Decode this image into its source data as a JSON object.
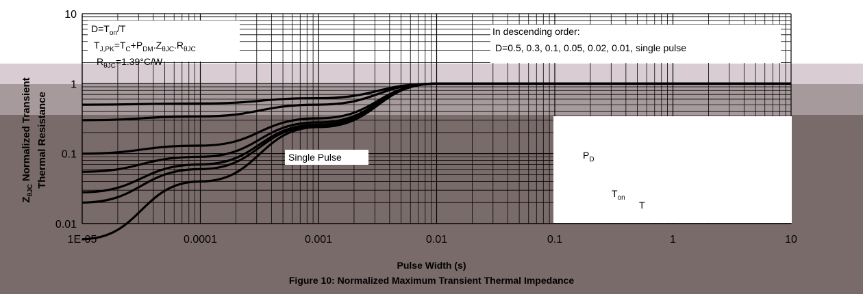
{
  "chart_data": {
    "type": "line",
    "title": "Figure 10: Normalized Maximum Transient Thermal Impedance",
    "xlabel": "Pulse Width (s)",
    "ylabel_line1": "Z",
    "ylabel_sub": "θJC",
    "ylabel_line1_rest": " Normalized Transient",
    "ylabel_line2": "Thermal Resistance",
    "x_scale": "log",
    "y_scale": "log",
    "xlim": [
      1e-05,
      10
    ],
    "ylim": [
      0.01,
      10
    ],
    "x_ticks": [
      "1E-05",
      "0.0001",
      "0.001",
      "0.01",
      "0.1",
      "1",
      "10"
    ],
    "y_ticks": [
      "10",
      "1",
      "0.1",
      "0.01"
    ],
    "grid": true,
    "annotations": {
      "d_def": "D=T",
      "d_def_sub": "on",
      "d_def_rest": "/T",
      "tjpk_a": "T",
      "tjpk_a_sub": "J,PK",
      "tjpk_b": "=T",
      "tjpk_b_sub": "C",
      "tjpk_c": "+P",
      "tjpk_c_sub": "DM",
      "tjpk_d": ".Z",
      "tjpk_d_sub": "θJC",
      "tjpk_e": ".R",
      "tjpk_e_sub": "θJC",
      "rthjc_a": "R",
      "rthjc_a_sub": "θJC",
      "rthjc_b": "=1.39°C/W",
      "order_title": "In descending order:",
      "order_values": "D=0.5, 0.3, 0.1, 0.05, 0.02, 0.01, single pulse",
      "single_pulse": "Single Pulse",
      "pd": "P",
      "pd_sub": "D",
      "ton": "T",
      "ton_sub": "on",
      "t": "T"
    },
    "series": [
      {
        "name": "0.5",
        "x": [
          1e-05,
          0.0001,
          0.001,
          0.01,
          0.1,
          1,
          10
        ],
        "y": [
          0.5,
          0.52,
          0.62,
          1.0,
          1.0,
          1.0,
          1.0
        ]
      },
      {
        "name": "0.3",
        "x": [
          1e-05,
          0.0001,
          0.001,
          0.01,
          0.1,
          1,
          10
        ],
        "y": [
          0.3,
          0.34,
          0.5,
          1.0,
          1.0,
          1.0,
          1.0
        ]
      },
      {
        "name": "0.1",
        "x": [
          1e-05,
          0.0001,
          0.001,
          0.01,
          0.1,
          1,
          10
        ],
        "y": [
          0.1,
          0.13,
          0.32,
          1.0,
          1.0,
          1.0,
          1.0
        ]
      },
      {
        "name": "0.05",
        "x": [
          1e-05,
          0.0001,
          0.001,
          0.01,
          0.1,
          1,
          10
        ],
        "y": [
          0.055,
          0.09,
          0.28,
          1.0,
          1.0,
          1.0,
          1.0
        ]
      },
      {
        "name": "0.02",
        "x": [
          1e-05,
          0.0001,
          0.001,
          0.01,
          0.1,
          1,
          10
        ],
        "y": [
          0.028,
          0.07,
          0.26,
          1.0,
          1.0,
          1.0,
          1.0
        ]
      },
      {
        "name": "0.01",
        "x": [
          1e-05,
          0.0001,
          0.001,
          0.01,
          0.1,
          1,
          10
        ],
        "y": [
          0.02,
          0.06,
          0.25,
          1.0,
          1.0,
          1.0,
          1.0
        ]
      },
      {
        "name": "single pulse",
        "x": [
          1e-05,
          0.0001,
          0.001,
          0.01,
          0.1,
          1,
          10
        ],
        "y": [
          0.006,
          0.04,
          0.24,
          1.0,
          1.0,
          1.0,
          1.0
        ]
      }
    ]
  }
}
